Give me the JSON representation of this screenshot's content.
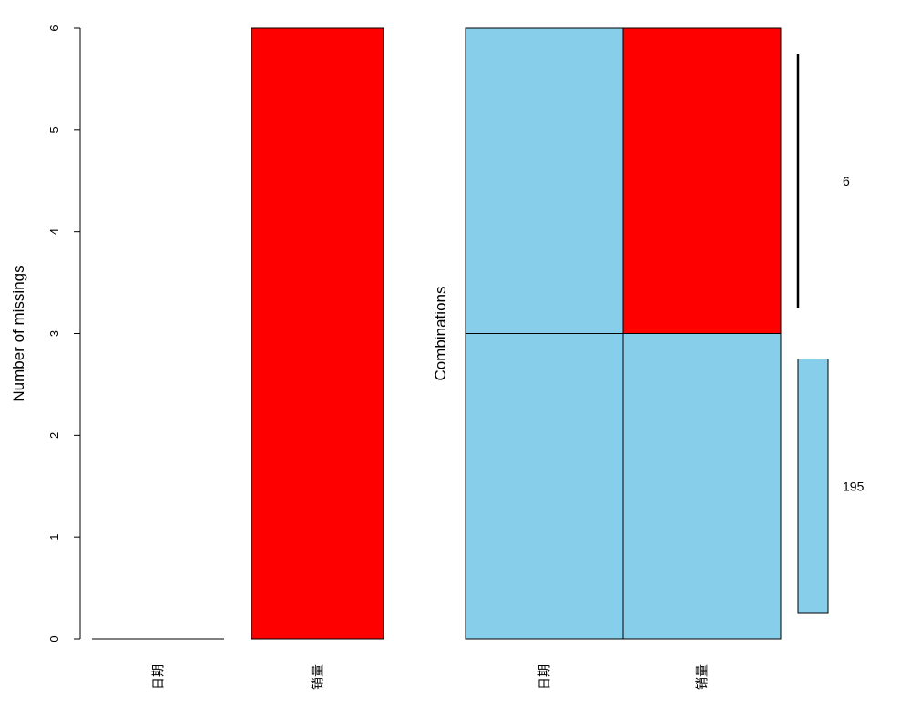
{
  "chart_data": [
    {
      "type": "bar",
      "title": "",
      "xlabel": "",
      "ylabel": "Number of missings",
      "categories": [
        "日期",
        "销量"
      ],
      "values": [
        0,
        6
      ],
      "ylim": [
        0,
        6
      ],
      "yticks": [
        "0",
        "1",
        "2",
        "3",
        "4",
        "5",
        "6"
      ],
      "bar_color": "#FF0000"
    },
    {
      "type": "heatmap",
      "title": "",
      "ylabel": "Combinations",
      "variables": [
        "日期",
        "销量"
      ],
      "combinations": [
        {
          "pattern": [
            false,
            true
          ],
          "count": 6,
          "count_label": "6"
        },
        {
          "pattern": [
            false,
            false
          ],
          "count": 195,
          "count_label": "195"
        }
      ],
      "colors": {
        "observed": "#87CEEB",
        "missing": "#FF0000"
      }
    }
  ]
}
